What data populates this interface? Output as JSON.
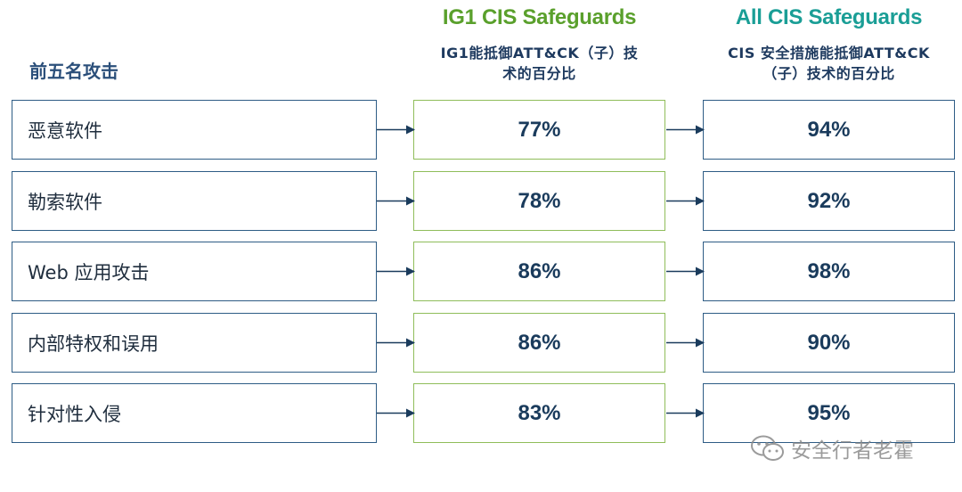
{
  "header": {
    "left_heading": "前五名攻击",
    "ig1": {
      "title": "IG1 CIS Safeguards",
      "subtitle_line1": "IG1能抵御ATT&CK（子）技",
      "subtitle_line2": "术的百分比",
      "color": "#5aa02c"
    },
    "all": {
      "title": "All CIS Safeguards",
      "subtitle_line1": "CIS 安全措施能抵御ATT&CK",
      "subtitle_line2": "（子）技术的百分比",
      "color": "#1a9e96"
    }
  },
  "rows": [
    {
      "label": "恶意软件",
      "ig1_pct": "77%",
      "all_pct": "94%"
    },
    {
      "label": "勒索软件",
      "ig1_pct": "78%",
      "all_pct": "92%"
    },
    {
      "label": "Web 应用攻击",
      "ig1_pct": "86%",
      "all_pct": "98%"
    },
    {
      "label": "内部特权和误用",
      "ig1_pct": "86%",
      "all_pct": "90%"
    },
    {
      "label": "针对性入侵",
      "ig1_pct": "83%",
      "all_pct": "95%"
    }
  ],
  "watermark": {
    "icon": "wechat-icon",
    "text": "安全行者老霍"
  },
  "colors": {
    "row_border": "#2e5c85",
    "ig1_border": "#8fbd5a",
    "arrow": "#1a3b5c"
  }
}
